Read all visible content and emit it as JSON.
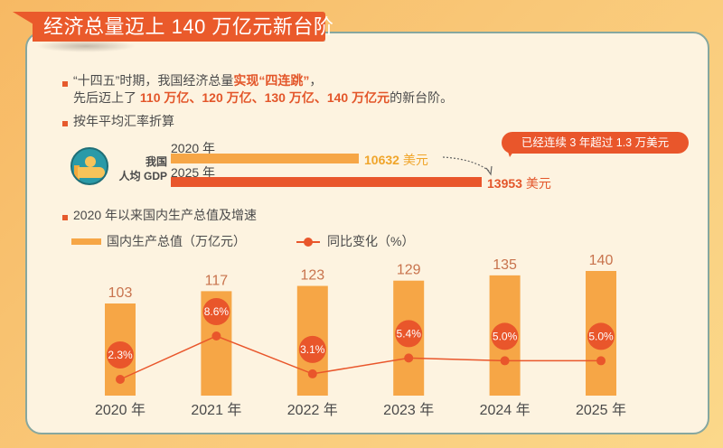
{
  "header": {
    "title": "经济总量迈上 140 万亿元新台阶"
  },
  "intro": {
    "line1_prefix": "“十四五”时期，我国经济总量",
    "line1_highlight": "实现“四连跳”",
    "line1_suffix": "，",
    "line2_prefix": "先后迈上了 ",
    "line2_highlight": "110 万亿、120 万亿、130 万亿、140 万亿元",
    "line2_suffix": "的新台阶。"
  },
  "gdp_per_capita": {
    "section_title": "按年平均汇率折算",
    "icon": "hand-coin-icon",
    "label_line1": "我国",
    "label_line2": "人均 GDP",
    "rows": [
      {
        "year_label": "2020 年",
        "value": "10632",
        "unit": " 美元",
        "color": "#f6a646",
        "value_color": "#f0a52a"
      },
      {
        "year_label": "2025 年",
        "value": "13953",
        "unit": " 美元",
        "color": "#e9562b",
        "value_color": "#e3562a"
      }
    ],
    "callout": "已经连续 3 年超过 1.3 万美元"
  },
  "colors": {
    "accent": "#e9562b",
    "bar": "#f6a646",
    "card_bg": "#fdf3e0",
    "card_border": "#86a79f"
  },
  "chart_data": {
    "type": "bar",
    "title": "2020 年以来国内生产总值及增速",
    "categories": [
      "2020 年",
      "2021 年",
      "2022 年",
      "2023 年",
      "2024 年",
      "2025 年"
    ],
    "series": [
      {
        "name": "国内生产总值（万亿元）",
        "type": "bar",
        "values": [
          103,
          117,
          123,
          129,
          135,
          140
        ],
        "labels": [
          "103",
          "117",
          "123",
          "129",
          "135",
          "140"
        ]
      },
      {
        "name": "同比变化（%）",
        "type": "line",
        "values": [
          2.3,
          8.6,
          3.1,
          5.4,
          5.0,
          5.0
        ],
        "labels": [
          "2.3%",
          "8.6%",
          "3.1%",
          "5.4%",
          "5.0%",
          "5.0%"
        ]
      }
    ],
    "legend": [
      "国内生产总值（万亿元）",
      "同比变化（%）"
    ],
    "legend_position": "top-left",
    "grid": false,
    "xlabel": "",
    "ylabel": ""
  }
}
